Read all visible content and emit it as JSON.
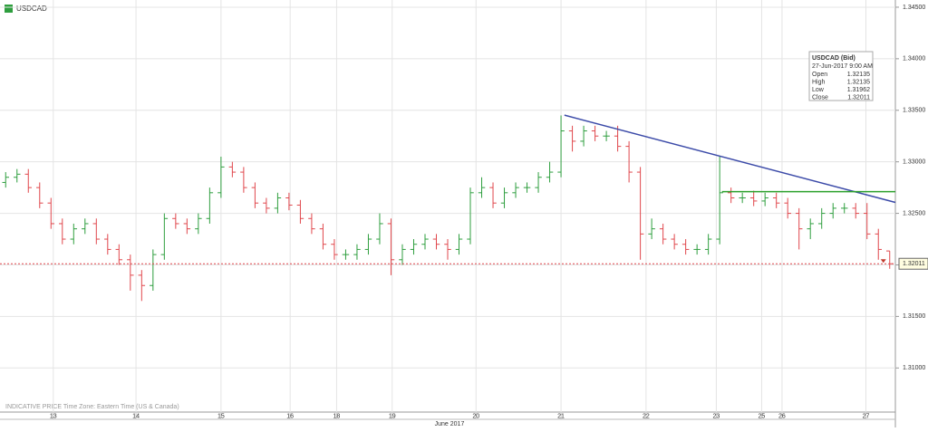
{
  "chart_data": {
    "type": "ohlc",
    "title": "USDCAD",
    "footnote": "INDICATIVE PRICE   Time Zone: Eastern Time (US & Canada)",
    "month_label": "June 2017",
    "up_color": "#2e9e3e",
    "down_color": "#e0474c",
    "grid": true,
    "series": {
      "open": [
        1.328,
        1.3285,
        1.3288,
        1.3275,
        1.326,
        1.324,
        1.3225,
        1.3235,
        1.324,
        1.3225,
        1.3215,
        1.3205,
        1.319,
        1.318,
        1.321,
        1.3245,
        1.324,
        1.3235,
        1.3245,
        1.327,
        1.3295,
        1.329,
        1.3275,
        1.326,
        1.3255,
        1.3265,
        1.3258,
        1.3245,
        1.3235,
        1.322,
        1.321,
        1.321,
        1.3215,
        1.3225,
        1.324,
        1.3205,
        1.3215,
        1.322,
        1.3225,
        1.322,
        1.3215,
        1.3225,
        1.327,
        1.3275,
        1.326,
        1.327,
        1.3275,
        1.3275,
        1.3285,
        1.329,
        1.333,
        1.332,
        1.333,
        1.3325,
        1.3325,
        1.3315,
        1.329,
        1.323,
        1.3235,
        1.3225,
        1.322,
        1.3215,
        1.3215,
        1.3225,
        1.327,
        1.3265,
        1.3265,
        1.3262,
        1.3265,
        1.326,
        1.325,
        1.3235,
        1.324,
        1.325,
        1.3255,
        1.3255,
        1.325,
        1.323,
        1.32135
      ],
      "high": [
        1.329,
        1.3293,
        1.3293,
        1.328,
        1.3265,
        1.3245,
        1.324,
        1.3245,
        1.3245,
        1.323,
        1.322,
        1.321,
        1.3195,
        1.3215,
        1.325,
        1.325,
        1.3245,
        1.325,
        1.3275,
        1.3305,
        1.33,
        1.3295,
        1.328,
        1.3265,
        1.327,
        1.327,
        1.3263,
        1.325,
        1.324,
        1.3225,
        1.3215,
        1.322,
        1.323,
        1.325,
        1.3245,
        1.322,
        1.3225,
        1.323,
        1.323,
        1.3225,
        1.323,
        1.3275,
        1.3285,
        1.328,
        1.3275,
        1.328,
        1.328,
        1.329,
        1.33,
        1.3345,
        1.3335,
        1.3335,
        1.3335,
        1.333,
        1.3335,
        1.332,
        1.3295,
        1.3245,
        1.324,
        1.323,
        1.3225,
        1.322,
        1.323,
        1.3305,
        1.3275,
        1.327,
        1.3272,
        1.327,
        1.327,
        1.3265,
        1.3255,
        1.3245,
        1.3255,
        1.326,
        1.326,
        1.326,
        1.326,
        1.3235,
        1.32135
      ],
      "low": [
        1.3275,
        1.328,
        1.327,
        1.3255,
        1.3235,
        1.322,
        1.322,
        1.323,
        1.322,
        1.321,
        1.32,
        1.3175,
        1.3165,
        1.3175,
        1.3205,
        1.3235,
        1.323,
        1.323,
        1.324,
        1.3265,
        1.3285,
        1.327,
        1.3255,
        1.325,
        1.325,
        1.3253,
        1.324,
        1.323,
        1.3215,
        1.3205,
        1.3205,
        1.3205,
        1.321,
        1.322,
        1.319,
        1.32,
        1.321,
        1.3215,
        1.3215,
        1.3205,
        1.321,
        1.322,
        1.3265,
        1.3255,
        1.3255,
        1.3265,
        1.327,
        1.327,
        1.328,
        1.3285,
        1.331,
        1.3315,
        1.332,
        1.332,
        1.331,
        1.328,
        1.3205,
        1.3225,
        1.322,
        1.3215,
        1.321,
        1.321,
        1.321,
        1.322,
        1.326,
        1.326,
        1.3257,
        1.3257,
        1.3255,
        1.3245,
        1.3215,
        1.3225,
        1.3235,
        1.3245,
        1.325,
        1.3245,
        1.3225,
        1.3205,
        1.31962
      ],
      "close": [
        1.3285,
        1.3288,
        1.3275,
        1.326,
        1.324,
        1.3225,
        1.3235,
        1.324,
        1.3225,
        1.3215,
        1.3205,
        1.319,
        1.318,
        1.321,
        1.3245,
        1.324,
        1.3235,
        1.3245,
        1.327,
        1.3295,
        1.329,
        1.3275,
        1.326,
        1.3255,
        1.3265,
        1.3258,
        1.3245,
        1.3235,
        1.322,
        1.321,
        1.321,
        1.3215,
        1.3225,
        1.324,
        1.3205,
        1.3215,
        1.322,
        1.3225,
        1.322,
        1.3215,
        1.3225,
        1.327,
        1.3275,
        1.326,
        1.327,
        1.3275,
        1.3275,
        1.3285,
        1.329,
        1.333,
        1.332,
        1.333,
        1.3325,
        1.3325,
        1.3315,
        1.329,
        1.323,
        1.3235,
        1.3225,
        1.322,
        1.3215,
        1.3215,
        1.3225,
        1.327,
        1.3265,
        1.3265,
        1.3262,
        1.3265,
        1.326,
        1.325,
        1.3235,
        1.324,
        1.325,
        1.3255,
        1.3255,
        1.325,
        1.323,
        1.3215,
        1.32011
      ]
    },
    "xlim": [
      0,
      79
    ],
    "xticks": [
      {
        "value": 4.7,
        "label": "13"
      },
      {
        "value": 12,
        "label": "14"
      },
      {
        "value": 19.5,
        "label": "15"
      },
      {
        "value": 25.6,
        "label": "16"
      },
      {
        "value": 29.7,
        "label": "18"
      },
      {
        "value": 34.6,
        "label": "19"
      },
      {
        "value": 42,
        "label": "20"
      },
      {
        "value": 49.5,
        "label": "21"
      },
      {
        "value": 57,
        "label": "22"
      },
      {
        "value": 63.2,
        "label": "23"
      },
      {
        "value": 67.2,
        "label": "25"
      },
      {
        "value": 69,
        "label": "26"
      },
      {
        "value": 76.4,
        "label": "27"
      }
    ],
    "ylim": [
      1.30572,
      1.3457
    ],
    "yticks": [
      {
        "value": 1.345,
        "label": "1.34500"
      },
      {
        "value": 1.34,
        "label": "1.34000"
      },
      {
        "value": 1.335,
        "label": "1.33500"
      },
      {
        "value": 1.33,
        "label": "1.33000"
      },
      {
        "value": 1.325,
        "label": "1.32500"
      },
      {
        "value": 1.32,
        "label": "1.32000"
      },
      {
        "value": 1.315,
        "label": "1.31500"
      },
      {
        "value": 1.31,
        "label": "1.31000"
      }
    ],
    "last_price": 1.32011,
    "trendlines": [
      {
        "color": "#3b4aa8",
        "x": [
          49.8,
          79
        ],
        "y": [
          1.33453,
          1.32606
        ]
      },
      {
        "color": "#2ca02c",
        "x": [
          63.7,
          79
        ],
        "y": [
          1.32711,
          1.32711
        ]
      }
    ],
    "tooltip": {
      "title": "USDCAD (Bid)",
      "time": "27-Jun-2017 9:00 AM",
      "rows": [
        [
          "Open",
          1.32135
        ],
        [
          "High",
          1.32135
        ],
        [
          "Low",
          1.31962
        ],
        [
          "Close",
          1.32011
        ]
      ]
    }
  }
}
